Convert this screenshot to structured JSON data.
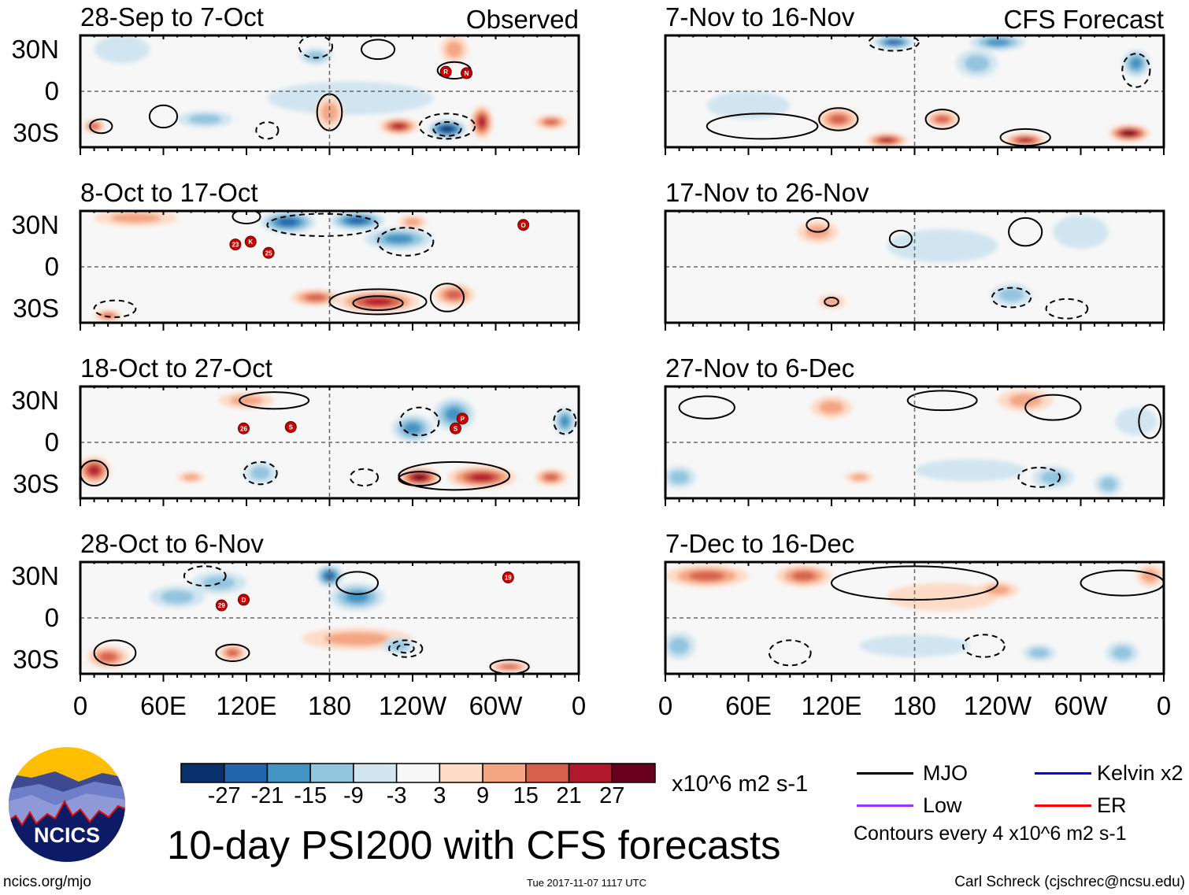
{
  "header": {
    "observed_label": "Observed",
    "forecast_label": "CFS Forecast"
  },
  "lat_labels": [
    "30N",
    "0",
    "30S"
  ],
  "lon_labels": [
    "0",
    "60E",
    "120E",
    "180",
    "120W",
    "60W",
    "0"
  ],
  "colors": {
    "bins": [
      "#08306b",
      "#2166ac",
      "#4393c3",
      "#92c5de",
      "#d1e5f0",
      "#f7f7f7",
      "#fddbc7",
      "#f4a582",
      "#d6604d",
      "#b2182b",
      "#67001f"
    ],
    "storm": "#cc0000",
    "mjo": "#000000",
    "kelvin": "#0000ff",
    "low": "#9933ff",
    "er": "#ff0000"
  },
  "chart_data": {
    "type": "heatmap",
    "title": "10-day PSI200 with CFS forecasts",
    "variable": "200-hPa streamfunction anomaly",
    "units": "x10^6 m2 s-1",
    "lon_range": [
      0,
      360
    ],
    "lat_range": [
      -40,
      40
    ],
    "colorbar": {
      "levels": [
        -27,
        -21,
        -15,
        -9,
        -3,
        3,
        9,
        15,
        21,
        27
      ]
    },
    "contour_interval_note": "Contours every 4 x10^6 m2 s-1",
    "legend": [
      {
        "name": "MJO",
        "color": "#000000"
      },
      {
        "name": "Kelvin x2",
        "color": "#0000ff"
      },
      {
        "name": "Low",
        "color": "#9933ff"
      },
      {
        "name": "ER",
        "color": "#ff0000"
      }
    ],
    "panels": [
      {
        "title": "28-Sep to 7-Oct",
        "kind": "Observed",
        "anomalies": [
          [
            195,
            -5,
            -3,
            60,
            12
          ],
          [
            30,
            30,
            -3,
            20,
            10
          ],
          [
            90,
            -20,
            -9,
            20,
            6
          ],
          [
            170,
            25,
            -9,
            12,
            6
          ],
          [
            180,
            -15,
            9,
            10,
            12
          ],
          [
            270,
            30,
            9,
            10,
            10
          ],
          [
            10,
            -25,
            15,
            8,
            5
          ],
          [
            340,
            -22,
            15,
            12,
            5
          ],
          [
            230,
            -25,
            21,
            14,
            6
          ],
          [
            290,
            -22,
            21,
            8,
            12
          ],
          [
            265,
            -27,
            -27,
            14,
            7
          ]
        ],
        "contours": [
          [
            15,
            -25,
            8,
            5,
            1
          ],
          [
            60,
            -18,
            10,
            8,
            1
          ],
          [
            180,
            -15,
            9,
            13,
            1
          ],
          [
            265,
            -25,
            20,
            9,
            -1
          ],
          [
            265,
            -27,
            10,
            5,
            -1
          ],
          [
            215,
            30,
            12,
            7,
            1
          ],
          [
            270,
            15,
            12,
            6,
            1
          ],
          [
            135,
            -28,
            8,
            6,
            -1
          ],
          [
            170,
            32,
            12,
            8,
            -1
          ]
        ],
        "storms": [
          [
            264,
            14,
            "R"
          ],
          [
            279,
            13,
            "N"
          ]
        ]
      },
      {
        "title": "8-Oct to 17-Oct",
        "kind": "Observed",
        "anomalies": [
          [
            40,
            35,
            9,
            30,
            6
          ],
          [
            240,
            32,
            9,
            10,
            5
          ],
          [
            20,
            -35,
            15,
            10,
            4
          ],
          [
            170,
            -22,
            15,
            18,
            6
          ],
          [
            270,
            -20,
            15,
            15,
            8
          ],
          [
            230,
            20,
            -15,
            25,
            8
          ],
          [
            150,
            32,
            -21,
            20,
            8
          ],
          [
            200,
            33,
            -21,
            20,
            7
          ],
          [
            215,
            -25,
            21,
            30,
            8
          ]
        ],
        "contours": [
          [
            175,
            30,
            40,
            8,
            -1
          ],
          [
            235,
            18,
            20,
            10,
            -1
          ],
          [
            215,
            -25,
            35,
            9,
            1
          ],
          [
            215,
            -26,
            18,
            5,
            1
          ],
          [
            265,
            -22,
            12,
            10,
            1
          ],
          [
            120,
            36,
            10,
            5,
            1
          ],
          [
            25,
            -30,
            15,
            6,
            -1
          ]
        ],
        "storms": [
          [
            112,
            16,
            "23"
          ],
          [
            123,
            18,
            "K"
          ],
          [
            136,
            10,
            "25"
          ],
          [
            320,
            30,
            "O"
          ]
        ]
      },
      {
        "title": "18-Oct to 27-Oct",
        "kind": "Observed",
        "anomalies": [
          [
            80,
            -25,
            9,
            10,
            4
          ],
          [
            120,
            30,
            9,
            20,
            6
          ],
          [
            130,
            -22,
            -9,
            12,
            8
          ],
          [
            240,
            10,
            -15,
            15,
            10
          ],
          [
            270,
            20,
            -15,
            15,
            12
          ],
          [
            350,
            15,
            -15,
            8,
            10
          ],
          [
            340,
            -25,
            15,
            12,
            6
          ],
          [
            10,
            -20,
            21,
            12,
            10
          ],
          [
            290,
            -25,
            21,
            25,
            8
          ],
          [
            245,
            -25,
            27,
            15,
            7
          ]
        ],
        "contours": [
          [
            130,
            -22,
            12,
            8,
            -1
          ],
          [
            205,
            -25,
            10,
            6,
            -1
          ],
          [
            270,
            -24,
            40,
            10,
            1
          ],
          [
            245,
            -26,
            15,
            5,
            1
          ],
          [
            10,
            -22,
            10,
            9,
            1
          ],
          [
            140,
            30,
            25,
            6,
            1
          ],
          [
            350,
            15,
            8,
            9,
            -1
          ],
          [
            245,
            15,
            14,
            10,
            -1
          ]
        ],
        "storms": [
          [
            118,
            10,
            "26"
          ],
          [
            152,
            11,
            "S"
          ],
          [
            276,
            17,
            "P"
          ],
          [
            271,
            10,
            "S"
          ]
        ]
      },
      {
        "title": "28-Oct to 6-Nov",
        "kind": "Observed",
        "anomalies": [
          [
            200,
            -15,
            9,
            40,
            8
          ],
          [
            100,
            25,
            -9,
            20,
            8
          ],
          [
            70,
            15,
            -9,
            20,
            8
          ],
          [
            230,
            -20,
            -9,
            12,
            6
          ],
          [
            200,
            15,
            -15,
            20,
            10
          ],
          [
            110,
            -25,
            15,
            10,
            6
          ],
          [
            20,
            -28,
            15,
            15,
            8
          ],
          [
            310,
            -35,
            15,
            15,
            4
          ],
          [
            180,
            30,
            -21,
            10,
            8
          ]
        ],
        "contours": [
          [
            200,
            25,
            15,
            8,
            1
          ],
          [
            235,
            -22,
            12,
            6,
            -1
          ],
          [
            235,
            -22,
            6,
            3,
            -1
          ],
          [
            110,
            -25,
            12,
            6,
            1
          ],
          [
            25,
            -25,
            15,
            9,
            1
          ],
          [
            90,
            30,
            15,
            7,
            -1
          ],
          [
            310,
            -35,
            14,
            5,
            1
          ]
        ],
        "storms": [
          [
            102,
            9,
            "29"
          ],
          [
            118,
            13,
            "D"
          ],
          [
            309,
            29,
            "19"
          ]
        ]
      },
      {
        "title": "7-Nov to 16-Nov",
        "kind": "CFS Forecast",
        "anomalies": [
          [
            60,
            -10,
            -3,
            30,
            10
          ],
          [
            225,
            20,
            -9,
            15,
            10
          ],
          [
            340,
            20,
            -15,
            10,
            10
          ],
          [
            240,
            35,
            -15,
            20,
            6
          ],
          [
            200,
            -20,
            15,
            12,
            6
          ],
          [
            125,
            -20,
            15,
            15,
            8
          ],
          [
            165,
            35,
            -21,
            15,
            5
          ],
          [
            160,
            -35,
            21,
            15,
            5
          ],
          [
            260,
            -35,
            21,
            15,
            5
          ],
          [
            335,
            -30,
            27,
            15,
            6
          ]
        ],
        "contours": [
          [
            200,
            -20,
            12,
            7,
            1
          ],
          [
            125,
            -20,
            14,
            8,
            1
          ],
          [
            70,
            -25,
            40,
            9,
            1
          ],
          [
            165,
            35,
            18,
            6,
            -1
          ],
          [
            340,
            15,
            10,
            12,
            -1
          ],
          [
            260,
            -33,
            18,
            6,
            1
          ]
        ],
        "storms": []
      },
      {
        "title": "17-Nov to 26-Nov",
        "kind": "CFS Forecast",
        "anomalies": [
          [
            200,
            15,
            -3,
            40,
            12
          ],
          [
            300,
            25,
            -3,
            20,
            12
          ],
          [
            250,
            -20,
            -9,
            15,
            8
          ],
          [
            110,
            25,
            9,
            15,
            8
          ],
          [
            120,
            -25,
            9,
            10,
            5
          ]
        ],
        "contours": [
          [
            170,
            20,
            8,
            6,
            1
          ],
          [
            260,
            25,
            12,
            10,
            1
          ],
          [
            250,
            -22,
            14,
            7,
            -1
          ],
          [
            120,
            -25,
            5,
            3,
            1
          ],
          [
            290,
            -30,
            15,
            7,
            -1
          ],
          [
            110,
            30,
            8,
            5,
            1
          ]
        ],
        "storms": []
      },
      {
        "title": "27-Nov to 6-Dec",
        "kind": "CFS Forecast",
        "anomalies": [
          [
            220,
            -20,
            -3,
            40,
            8
          ],
          [
            340,
            15,
            -3,
            15,
            10
          ],
          [
            10,
            -25,
            -9,
            12,
            8
          ],
          [
            280,
            -25,
            -9,
            15,
            8
          ],
          [
            320,
            -30,
            -9,
            10,
            8
          ],
          [
            120,
            25,
            9,
            15,
            8
          ],
          [
            260,
            30,
            9,
            20,
            8
          ],
          [
            140,
            -25,
            9,
            10,
            4
          ]
        ],
        "contours": [
          [
            200,
            30,
            25,
            7,
            1
          ],
          [
            280,
            25,
            20,
            9,
            1
          ],
          [
            270,
            -25,
            15,
            7,
            -1
          ],
          [
            30,
            25,
            20,
            8,
            1
          ],
          [
            350,
            15,
            8,
            12,
            1
          ]
        ],
        "storms": []
      },
      {
        "title": "7-Dec to 16-Dec",
        "kind": "CFS Forecast",
        "anomalies": [
          [
            200,
            15,
            3,
            40,
            10
          ],
          [
            180,
            -20,
            -3,
            40,
            8
          ],
          [
            240,
            20,
            9,
            15,
            6
          ],
          [
            350,
            30,
            9,
            10,
            8
          ],
          [
            10,
            -20,
            -9,
            12,
            10
          ],
          [
            270,
            -25,
            -9,
            12,
            6
          ],
          [
            330,
            -25,
            -9,
            12,
            8
          ],
          [
            30,
            30,
            15,
            30,
            8
          ],
          [
            100,
            30,
            15,
            20,
            8
          ]
        ],
        "contours": [
          [
            180,
            25,
            60,
            12,
            1
          ],
          [
            330,
            25,
            30,
            9,
            1
          ],
          [
            90,
            -25,
            15,
            9,
            -1
          ],
          [
            230,
            -20,
            15,
            8,
            -1
          ]
        ],
        "storms": []
      }
    ]
  },
  "colorbar_units": "x10^6 m2 s-1",
  "footer": {
    "logo_text": "NCICS",
    "url": "ncics.org/mjo",
    "timestamp": "Tue 2017-11-07 1117 UTC",
    "author": "Carl Schreck (cjschrec@ncsu.edu)"
  }
}
